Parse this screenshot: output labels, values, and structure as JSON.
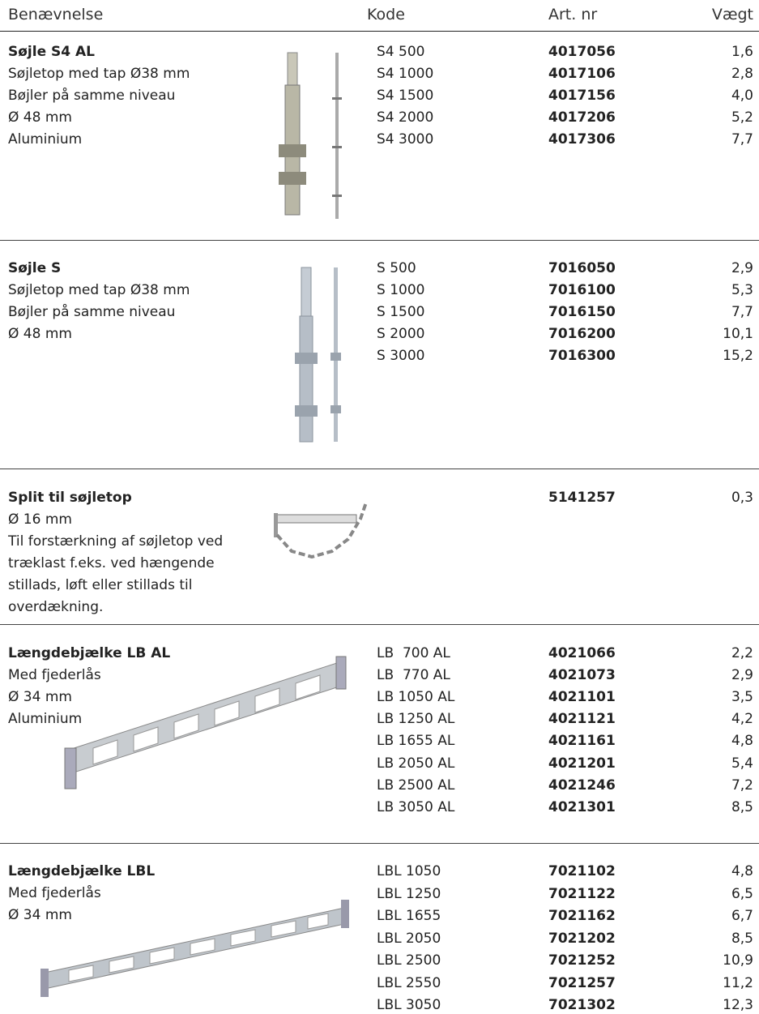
{
  "header": {
    "columns": [
      "Benævnelse",
      "Kode",
      "Art. nr",
      "Vægt"
    ]
  },
  "sections": [
    {
      "title": "Søjle S4 AL",
      "description": [
        "Søjletop med tap Ø38 mm",
        "Bøjler på samme niveau",
        "Ø 48 mm",
        "Aluminium"
      ],
      "rows": [
        {
          "code": "S4 500",
          "art_nr": "4017056",
          "weight": "1,6"
        },
        {
          "code": "S4 1000",
          "art_nr": "4017106",
          "weight": "2,8"
        },
        {
          "code": "S4 1500",
          "art_nr": "4017156",
          "weight": "4,0"
        },
        {
          "code": "S4 2000",
          "art_nr": "4017206",
          "weight": "5,2"
        },
        {
          "code": "S4 3000",
          "art_nr": "4017306",
          "weight": "7,7"
        }
      ]
    },
    {
      "title": "Søjle S",
      "description": [
        "Søjletop med tap Ø38 mm",
        "Bøjler på samme niveau",
        "Ø 48 mm"
      ],
      "rows": [
        {
          "code": "S 500",
          "art_nr": "7016050",
          "weight": "2,9"
        },
        {
          "code": "S 1000",
          "art_nr": "7016100",
          "weight": "5,3"
        },
        {
          "code": "S 1500",
          "art_nr": "7016150",
          "weight": "7,7"
        },
        {
          "code": "S 2000",
          "art_nr": "7016200",
          "weight": "10,1"
        },
        {
          "code": "S 3000",
          "art_nr": "7016300",
          "weight": "15,2"
        }
      ]
    },
    {
      "title": "Split til søjletop",
      "description": [
        "Ø 16 mm",
        "Til forstærkning af søjletop ved",
        "træklast f.eks. ved hængende",
        "stillads, løft eller stillads til",
        "overdækning."
      ],
      "rows": [
        {
          "art_nr": "5141257",
          "weight": "0,3"
        }
      ]
    },
    {
      "title": "Længdebjælke LB AL",
      "description": [
        "Med fjederlås",
        "Ø 34 mm",
        "Aluminium"
      ],
      "rows": [
        {
          "code": "LB  700 AL",
          "art_nr": "4021066",
          "weight": "2,2"
        },
        {
          "code": "LB  770 AL",
          "art_nr": "4021073",
          "weight": "2,9"
        },
        {
          "code": "LB 1050 AL",
          "art_nr": "4021101",
          "weight": "3,5"
        },
        {
          "code": "LB 1250 AL",
          "art_nr": "4021121",
          "weight": "4,2"
        },
        {
          "code": "LB 1655 AL",
          "art_nr": "4021161",
          "weight": "4,8"
        },
        {
          "code": "LB 2050 AL",
          "art_nr": "4021201",
          "weight": "5,4"
        },
        {
          "code": "LB 2500 AL",
          "art_nr": "4021246",
          "weight": "7,2"
        },
        {
          "code": "LB 3050 AL",
          "art_nr": "4021301",
          "weight": "8,5"
        }
      ]
    },
    {
      "title": "Længdebjælke LBL",
      "description": [
        "Med fjederlås",
        "Ø 34 mm"
      ],
      "rows": [
        {
          "code": "LBL 1050",
          "art_nr": "7021102",
          "weight": "4,8"
        },
        {
          "code": "LBL 1250",
          "art_nr": "7021122",
          "weight": "6,5"
        },
        {
          "code": "LBL 1655",
          "art_nr": "7021162",
          "weight": "6,7"
        },
        {
          "code": "LBL 2050",
          "art_nr": "7021202",
          "weight": "8,5"
        },
        {
          "code": "LBL 2500",
          "art_nr": "7021252",
          "weight": "10,9"
        },
        {
          "code": "LBL 2550",
          "art_nr": "7021257",
          "weight": "11,2"
        },
        {
          "code": "LBL 3050",
          "art_nr": "7021302",
          "weight": "12,3"
        }
      ]
    }
  ]
}
